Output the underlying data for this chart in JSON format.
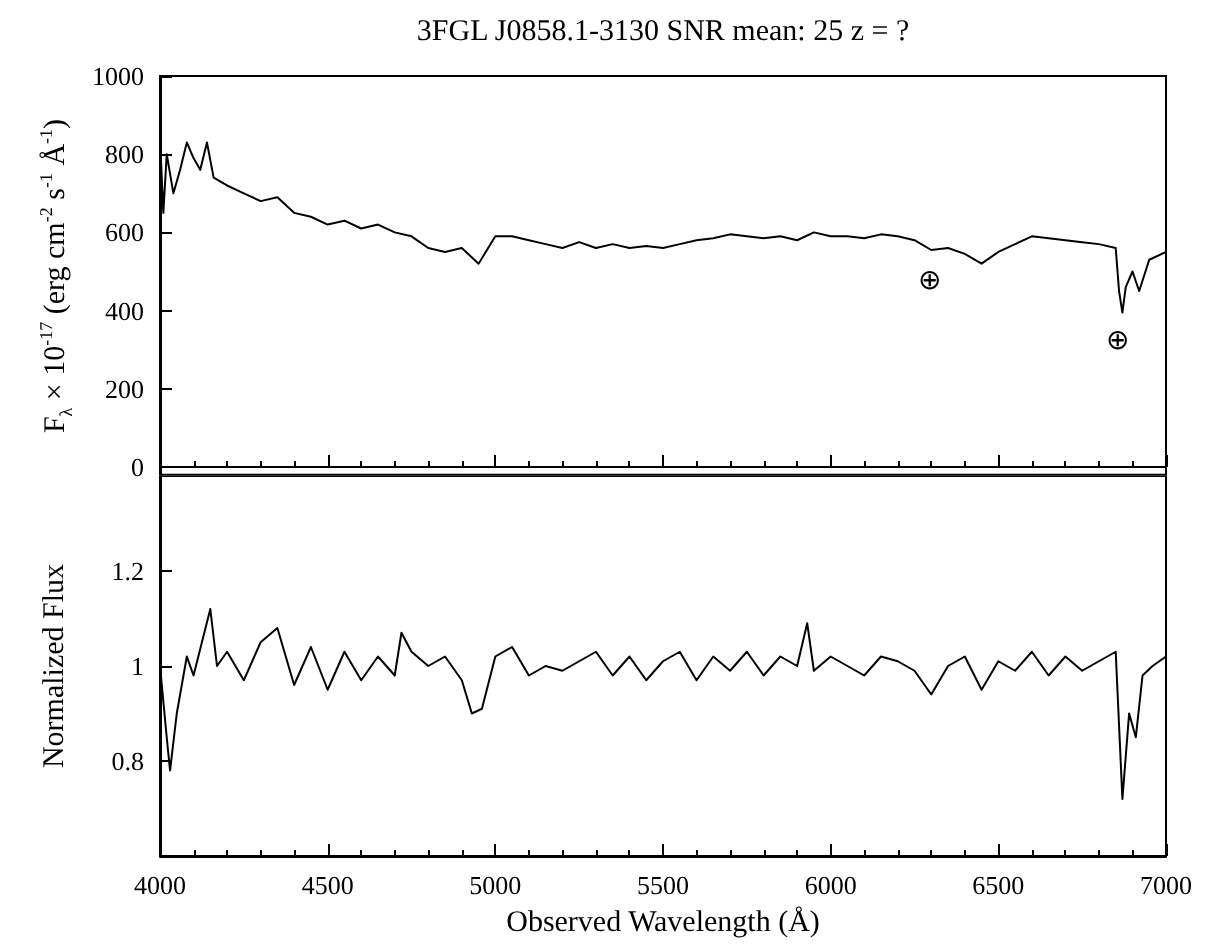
{
  "chart_data": [
    {
      "type": "line",
      "title": "3FGL J0858.1-3130 SNR mean: 25   z = ?",
      "ylabel": "F$_{λ}$ × 10$^{-17}$ (erg cm$^{-2}$ s$^{-1}$ Å$^{-1}$)",
      "xlim": [
        4000,
        7000
      ],
      "xticks": [
        4000,
        4500,
        5000,
        5500,
        6000,
        6500,
        7000
      ],
      "ylim": [
        -20,
        1000
      ],
      "yticks": [
        0,
        200,
        400,
        600,
        800,
        1000
      ],
      "tick_labels": "y",
      "marker": "none",
      "line_style": "solid",
      "annotations": [
        "⊕",
        "⊕"
      ],
      "series": [
        {
          "color": "#000000",
          "x": [
            4000,
            4010,
            4020,
            4040,
            4060,
            4080,
            4100,
            4120,
            4140,
            4160,
            4200,
            4250,
            4300,
            4350,
            4400,
            4450,
            4500,
            4550,
            4600,
            4650,
            4700,
            4750,
            4800,
            4850,
            4900,
            4950,
            5000,
            5050,
            5100,
            5150,
            5200,
            5250,
            5300,
            5350,
            5400,
            5450,
            5500,
            5550,
            5600,
            5650,
            5700,
            5750,
            5800,
            5850,
            5900,
            5950,
            6000,
            6050,
            6100,
            6150,
            6200,
            6250,
            6300,
            6350,
            6400,
            6450,
            6500,
            6550,
            6600,
            6650,
            6700,
            6750,
            6800,
            6850,
            6860,
            6870,
            6880,
            6900,
            6920,
            6950,
            7000
          ],
          "values": [
            840,
            650,
            800,
            700,
            760,
            830,
            790,
            760,
            830,
            740,
            720,
            700,
            680,
            690,
            650,
            640,
            620,
            630,
            610,
            620,
            600,
            590,
            560,
            550,
            560,
            520,
            590,
            590,
            580,
            570,
            560,
            575,
            560,
            570,
            560,
            565,
            560,
            570,
            580,
            585,
            595,
            590,
            585,
            590,
            580,
            600,
            590,
            590,
            585,
            595,
            590,
            580,
            555,
            560,
            545,
            520,
            550,
            570,
            590,
            585,
            580,
            575,
            570,
            560,
            450,
            395,
            460,
            500,
            450,
            530,
            550
          ]
        }
      ]
    },
    {
      "type": "line",
      "xlabel": "Observed Wavelength (Å)",
      "ylabel": "Normalized Flux",
      "xlim": [
        4000,
        7000
      ],
      "xticks": [
        4000,
        4500,
        5000,
        5500,
        6000,
        6500,
        7000
      ],
      "ylim": [
        0.6,
        1.4
      ],
      "yticks": [
        {
          "value": 0.8,
          "label": "0.8"
        },
        1,
        {
          "value": 1.2,
          "label": "1.2"
        }
      ],
      "marker": "none",
      "line_style": "solid",
      "series": [
        {
          "color": "#000000",
          "x": [
            4000,
            4020,
            4030,
            4050,
            4080,
            4100,
            4150,
            4170,
            4200,
            4250,
            4300,
            4350,
            4400,
            4450,
            4500,
            4550,
            4600,
            4650,
            4700,
            4720,
            4750,
            4800,
            4850,
            4900,
            4930,
            4960,
            5000,
            5050,
            5100,
            5150,
            5200,
            5250,
            5300,
            5350,
            5400,
            5450,
            5500,
            5550,
            5600,
            5650,
            5700,
            5750,
            5800,
            5850,
            5900,
            5930,
            5950,
            6000,
            6050,
            6100,
            6150,
            6200,
            6250,
            6300,
            6350,
            6400,
            6450,
            6500,
            6550,
            6600,
            6650,
            6700,
            6750,
            6800,
            6850,
            6870,
            6890,
            6910,
            6930,
            6960,
            7000
          ],
          "values": [
            1.0,
            0.85,
            0.78,
            0.9,
            1.02,
            0.98,
            1.12,
            1.0,
            1.03,
            0.97,
            1.05,
            1.08,
            0.96,
            1.04,
            0.95,
            1.03,
            0.97,
            1.02,
            0.98,
            1.07,
            1.03,
            1.0,
            1.02,
            0.97,
            0.9,
            0.91,
            1.02,
            1.04,
            0.98,
            1.0,
            0.99,
            1.01,
            1.03,
            0.98,
            1.02,
            0.97,
            1.01,
            1.03,
            0.97,
            1.02,
            0.99,
            1.03,
            0.98,
            1.02,
            1.0,
            1.09,
            0.99,
            1.02,
            1.0,
            0.98,
            1.02,
            1.01,
            0.99,
            0.94,
            1.0,
            1.02,
            0.95,
            1.01,
            0.99,
            1.03,
            0.98,
            1.02,
            0.99,
            1.01,
            1.03,
            0.72,
            0.9,
            0.85,
            0.98,
            1.0,
            1.02
          ]
        }
      ]
    }
  ]
}
